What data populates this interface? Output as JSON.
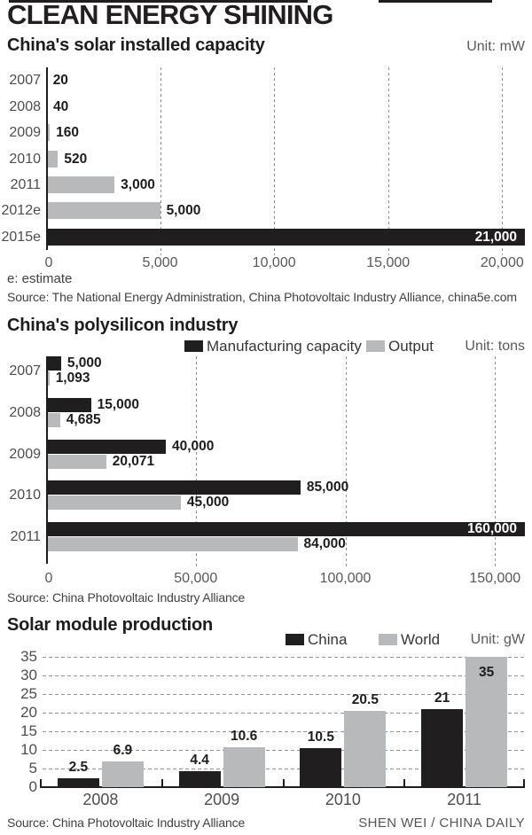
{
  "page": {
    "title": "CLEAN ENERGY SHINING",
    "credit": "SHEN WEI / CHINA DAILY"
  },
  "colors": {
    "bar_black": "#211e1f",
    "bar_gray": "#b8b9bb",
    "grid_gray": "#8f9194",
    "text_dark": "#231f20",
    "text_gray": "#57585a"
  },
  "chart_data": [
    {
      "type": "bar",
      "orientation": "horizontal",
      "title": "China's solar installed capacity",
      "unit": "Unit: mW",
      "categories": [
        "2007",
        "2008",
        "2009",
        "2010",
        "2011",
        "2012e",
        "2015e"
      ],
      "values": [
        20,
        40,
        160,
        520,
        3000,
        5000,
        21000
      ],
      "value_labels": [
        "20",
        "40",
        "160",
        "520",
        "3,000",
        "5,000",
        "21,000"
      ],
      "highlight_category": "2015e",
      "xlim": [
        0,
        21000
      ],
      "x_ticks": [
        0,
        5000,
        10000,
        15000,
        20000
      ],
      "x_tick_labels": [
        "0",
        "5,000",
        "10,000",
        "15,000",
        "20,000"
      ],
      "grid": "dashed-vertical",
      "footnote": "e: estimate",
      "source": "Source: The National Energy Administration, China Photovoltaic Industry Alliance, china5e.com"
    },
    {
      "type": "bar",
      "orientation": "horizontal",
      "title": "China's polysilicon industry",
      "unit": "Unit: tons",
      "categories": [
        "2007",
        "2008",
        "2009",
        "2010",
        "2011"
      ],
      "series": [
        {
          "name": "Manufacturing capacity",
          "color": "#211e1f",
          "values": [
            5000,
            15000,
            40000,
            85000,
            160000
          ],
          "value_labels": [
            "5,000",
            "15,000",
            "40,000",
            "85,000",
            "160,000"
          ]
        },
        {
          "name": "Output",
          "color": "#b8b9bb",
          "values": [
            1093,
            4685,
            20071,
            45000,
            84000
          ],
          "value_labels": [
            "1,093",
            "4,685",
            "20,071",
            "45,000",
            "84,000"
          ]
        }
      ],
      "xlim": [
        0,
        160000
      ],
      "x_ticks": [
        0,
        50000,
        100000,
        150000
      ],
      "x_tick_labels": [
        "0",
        "50,000",
        "100,000",
        "150,000"
      ],
      "grid": "dashed-vertical",
      "legend_position": "top",
      "source": "Source: China Photovoltaic Industry Alliance"
    },
    {
      "type": "bar",
      "orientation": "vertical",
      "title": "Solar module production",
      "unit": "Unit: gW",
      "categories": [
        "2008",
        "2009",
        "2010",
        "2011"
      ],
      "series": [
        {
          "name": "China",
          "color": "#211e1f",
          "values": [
            2.5,
            4.4,
            10.5,
            21
          ],
          "value_labels": [
            "2.5",
            "4.4",
            "10.5",
            "21"
          ]
        },
        {
          "name": "World",
          "color": "#b8b9bb",
          "values": [
            6.9,
            10.6,
            20.5,
            35
          ],
          "value_labels": [
            "6.9",
            "10.6",
            "20.5",
            "35"
          ]
        }
      ],
      "ylim": [
        0,
        35
      ],
      "y_ticks": [
        0,
        5,
        10,
        15,
        20,
        25,
        30,
        35
      ],
      "y_tick_labels": [
        "0",
        "5",
        "10",
        "15",
        "20",
        "25",
        "30",
        "35"
      ],
      "grid": "dashed-horizontal",
      "legend_position": "top",
      "source": "Source: China Photovoltaic Industry Alliance"
    }
  ]
}
